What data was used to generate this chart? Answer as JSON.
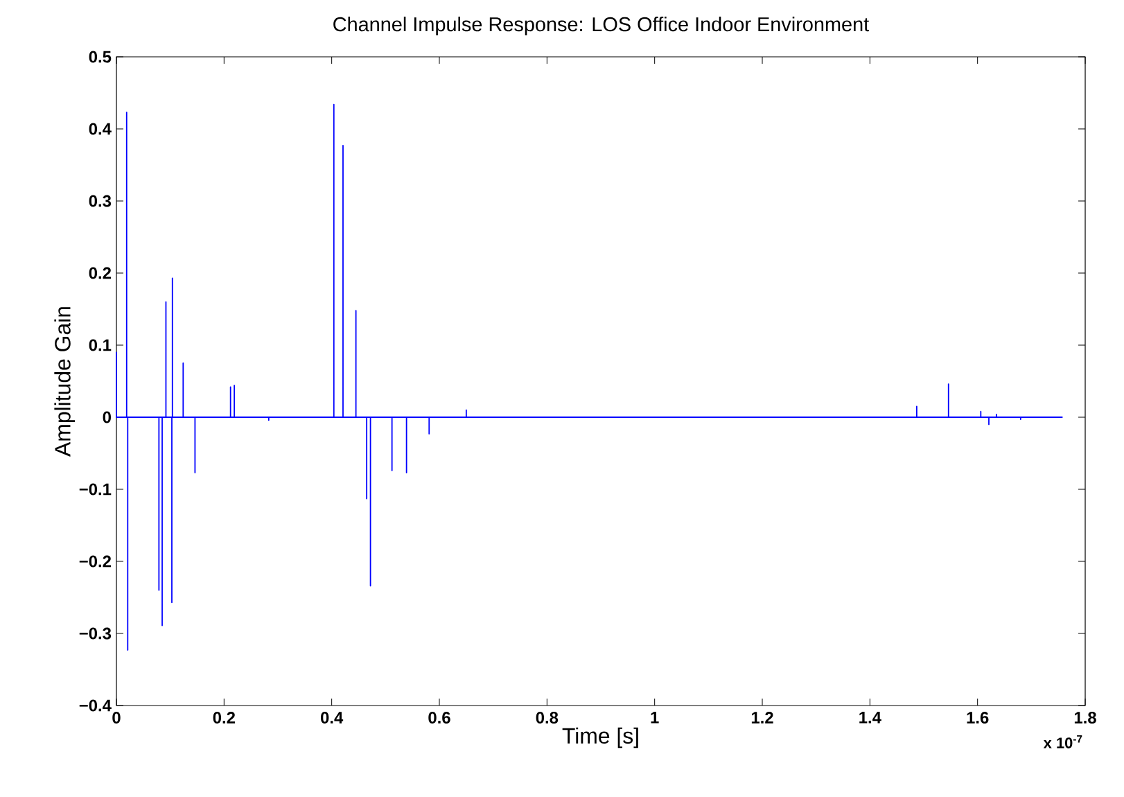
{
  "chart_data": {
    "type": "line",
    "title": "Channel Impulse Response: LOS Office Indoor Environment",
    "xlabel": "Time [s]",
    "ylabel": "Amplitude Gain",
    "annotations": [
      "x 10$^{-7}$"
    ],
    "xlim": [
      0,
      1.8
    ],
    "xticks": [
      0,
      0.2,
      0.4,
      0.6,
      0.8,
      1,
      1.2,
      1.4,
      1.6,
      1.8
    ],
    "ylim": [
      -0.4,
      0.5
    ],
    "yticks": [
      {
        "value": -0.4,
        "label": "−0.4"
      },
      {
        "value": -0.3,
        "label": "−0.3"
      },
      {
        "value": -0.2,
        "label": "−0.2"
      },
      {
        "value": -0.1,
        "label": "−0.1"
      },
      0,
      0.1,
      0.2,
      0.3,
      0.4,
      0.5
    ],
    "series": [
      {
        "color": "#0000ff",
        "x": [
          0,
          0,
          0,
          0.019,
          0.019,
          0.019,
          0.021,
          0.021,
          0.021,
          0.079,
          0.079,
          0.079,
          0.085,
          0.085,
          0.085,
          0.092,
          0.092,
          0.092,
          0.103,
          0.103,
          0.103,
          0.104,
          0.104,
          0.104,
          0.124,
          0.124,
          0.124,
          0.146,
          0.146,
          0.146,
          0.212,
          0.212,
          0.212,
          0.219,
          0.219,
          0.219,
          0.283,
          0.283,
          0.283,
          0.404,
          0.404,
          0.404,
          0.421,
          0.421,
          0.421,
          0.445,
          0.445,
          0.445,
          0.465,
          0.465,
          0.465,
          0.472,
          0.472,
          0.472,
          0.512,
          0.512,
          0.512,
          0.539,
          0.539,
          0.539,
          0.581,
          0.581,
          0.581,
          0.65,
          0.65,
          0.65,
          1.487,
          1.487,
          1.487,
          1.546,
          1.546,
          1.546,
          1.606,
          1.606,
          1.606,
          1.621,
          1.621,
          1.621,
          1.635,
          1.635,
          1.635,
          1.68,
          1.68,
          1.68,
          1.758
        ],
        "values": [
          0,
          0.09,
          0,
          0,
          0.423,
          0,
          0,
          -0.323,
          0,
          0,
          -0.24,
          0,
          0,
          -0.289,
          0,
          0,
          0.16,
          0,
          0,
          -0.257,
          0,
          0,
          0.193,
          0,
          0,
          0.075,
          0,
          0,
          -0.077,
          0,
          0,
          0.042,
          0,
          0,
          0.044,
          0,
          0,
          -0.004,
          0,
          0,
          0.434,
          0,
          0,
          0.377,
          0,
          0,
          0.148,
          0,
          0,
          -0.113,
          0,
          0,
          -0.234,
          0,
          0,
          -0.074,
          0,
          0,
          -0.077,
          0,
          0,
          -0.023,
          0,
          0,
          0.01,
          0,
          0,
          0.015,
          0,
          0,
          0.046,
          0,
          0,
          0.008,
          0,
          0,
          -0.01,
          0,
          0,
          0.004,
          0,
          0,
          -0.003,
          0,
          0
        ]
      }
    ]
  }
}
